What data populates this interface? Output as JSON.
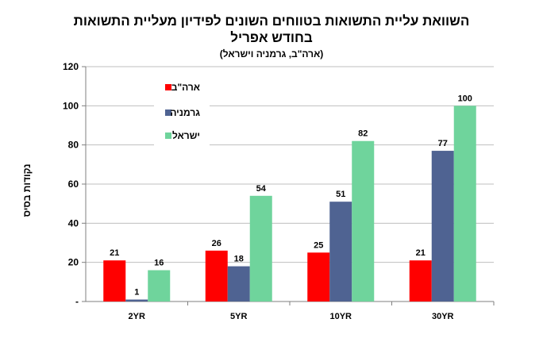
{
  "chart_data": {
    "type": "bar",
    "title_lines": [
      "השוואת עליית התשואות בטווחים השונים לפידיון מעליית התשואות",
      "בחודש אפריל"
    ],
    "subtitle": "(ארה\"ב, גרמניה וישראל)",
    "ylabel": "נקודות בסיס",
    "xlabel": "",
    "categories": [
      "2YR",
      "5YR",
      "10YR",
      "30YR"
    ],
    "series": [
      {
        "name": "ארה\"ב",
        "color": "#FF0000",
        "values": [
          21,
          26,
          25,
          21
        ]
      },
      {
        "name": "גרמניה",
        "color": "#4F6392",
        "values": [
          1,
          18,
          51,
          77
        ]
      },
      {
        "name": "ישראל",
        "color": "#6FD49C",
        "values": [
          16,
          54,
          82,
          100
        ]
      }
    ],
    "ylim": [
      0,
      120
    ],
    "yticks": [
      "-",
      "20",
      "40",
      "60",
      "80",
      "100",
      "120"
    ],
    "grid": true,
    "legend_position": "top-left"
  }
}
